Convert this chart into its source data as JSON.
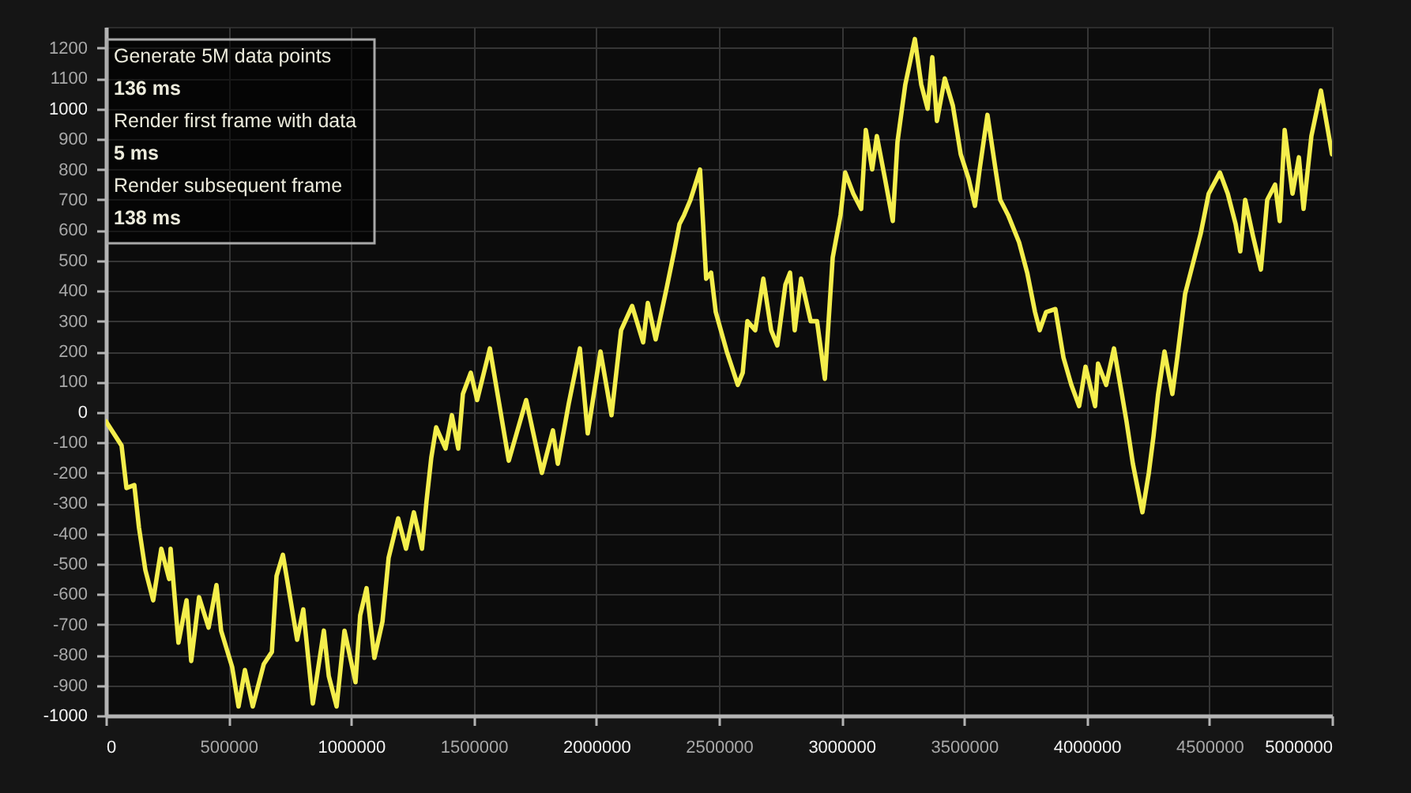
{
  "chart_data": {
    "type": "line",
    "annotations": [
      "Generate 5M data points",
      "136 ms",
      "Render first frame with data",
      "5 ms",
      "Render subsequent frame",
      "138 ms"
    ],
    "x": [
      0,
      64000,
      84000,
      116000,
      135000,
      161000,
      193000,
      226000,
      258000,
      264000,
      296000,
      329000,
      348000,
      380000,
      419000,
      451000,
      470000,
      515000,
      541000,
      567000,
      599000,
      644000,
      677000,
      696000,
      722000,
      747000,
      780000,
      805000,
      844000,
      889000,
      909000,
      941000,
      973000,
      1018000,
      1037000,
      1063000,
      1095000,
      1128000,
      1153000,
      1192000,
      1224000,
      1256000,
      1289000,
      1308000,
      1327000,
      1347000,
      1385000,
      1411000,
      1437000,
      1456000,
      1488000,
      1514000,
      1566000,
      1643000,
      1714000,
      1778000,
      1823000,
      1843000,
      1888000,
      1933000,
      1965000,
      2017000,
      2062000,
      2101000,
      2146000,
      2191000,
      2210000,
      2242000,
      2287000,
      2320000,
      2339000,
      2358000,
      2384000,
      2423000,
      2448000,
      2468000,
      2487000,
      2532000,
      2577000,
      2597000,
      2616000,
      2648000,
      2681000,
      2713000,
      2738000,
      2771000,
      2790000,
      2809000,
      2835000,
      2874000,
      2900000,
      2932000,
      2964000,
      2996000,
      3015000,
      3048000,
      3080000,
      3099000,
      3125000,
      3144000,
      3177000,
      3209000,
      3228000,
      3260000,
      3299000,
      3325000,
      3351000,
      3370000,
      3389000,
      3421000,
      3454000,
      3486000,
      3518000,
      3544000,
      3563000,
      3595000,
      3628000,
      3647000,
      3679000,
      3724000,
      3757000,
      3789000,
      3808000,
      3834000,
      3872000,
      3905000,
      3937000,
      3969000,
      3995000,
      4034000,
      4046000,
      4079000,
      4111000,
      4143000,
      4162000,
      4188000,
      4227000,
      4253000,
      4272000,
      4291000,
      4317000,
      4349000,
      4369000,
      4401000,
      4433000,
      4465000,
      4497000,
      4543000,
      4575000,
      4607000,
      4626000,
      4646000,
      4678000,
      4710000,
      4736000,
      4768000,
      4787000,
      4807000,
      4839000,
      4865000,
      4884000,
      4916000,
      4955000,
      4981000,
      5000000
    ],
    "series": [
      {
        "color": "#f4ee4c",
        "values": [
          -30,
          -110,
          -250,
          -240,
          -380,
          -520,
          -620,
          -450,
          -550,
          -450,
          -760,
          -620,
          -820,
          -610,
          -710,
          -570,
          -720,
          -840,
          -970,
          -850,
          -970,
          -830,
          -790,
          -540,
          -470,
          -590,
          -750,
          -650,
          -960,
          -720,
          -870,
          -970,
          -720,
          -890,
          -670,
          -580,
          -810,
          -690,
          -480,
          -350,
          -450,
          -330,
          -450,
          -290,
          -150,
          -50,
          -120,
          -10,
          -120,
          60,
          130,
          40,
          210,
          -160,
          40,
          -200,
          -60,
          -170,
          30,
          210,
          -70,
          200,
          -10,
          270,
          350,
          230,
          360,
          240,
          410,
          540,
          620,
          650,
          700,
          800,
          440,
          460,
          330,
          200,
          90,
          130,
          300,
          270,
          440,
          270,
          220,
          420,
          460,
          270,
          440,
          300,
          300,
          110,
          510,
          650,
          790,
          720,
          670,
          930,
          800,
          910,
          770,
          630,
          890,
          1080,
          1230,
          1080,
          1000,
          1170,
          960,
          1100,
          1010,
          850,
          770,
          680,
          800,
          980,
          800,
          700,
          650,
          560,
          460,
          330,
          270,
          330,
          340,
          180,
          90,
          20,
          150,
          20,
          160,
          90,
          210,
          60,
          -30,
          -170,
          -330,
          -200,
          -80,
          60,
          200,
          60,
          180,
          390,
          490,
          590,
          720,
          790,
          720,
          620,
          530,
          700,
          580,
          470,
          700,
          750,
          630,
          930,
          720,
          840,
          670,
          910,
          1060,
          940,
          850
        ]
      }
    ],
    "xlim": [
      0,
      5000000
    ],
    "xticks": [
      0,
      500000,
      1000000,
      1500000,
      2000000,
      2500000,
      3000000,
      3500000,
      4000000,
      4500000,
      5000000
    ],
    "ylim": [
      -1000,
      1270
    ],
    "yticks": [
      -1000,
      -900,
      -800,
      -700,
      -600,
      -500,
      -400,
      -300,
      -200,
      -100,
      0,
      100,
      200,
      300,
      400,
      500,
      600,
      700,
      800,
      900,
      1000,
      1100,
      1200
    ],
    "grid": true,
    "line_style": "solid"
  }
}
